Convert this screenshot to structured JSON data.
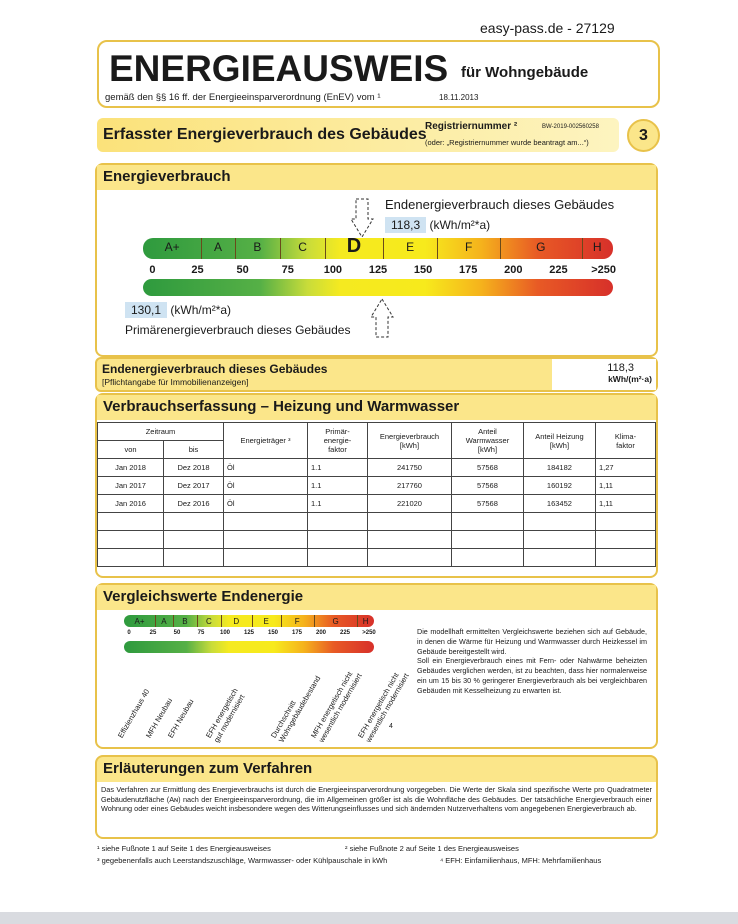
{
  "ref": "easy-pass.de - 27129",
  "header": {
    "title": "ENERGIEAUSWEIS",
    "subtitle": "für Wohngebäude",
    "enev": "gemäß den §§ 16 ff. der Energieeinsparverordnung (EnEV) vom ¹",
    "date": "18.11.2013"
  },
  "section": {
    "title": "Erfasster Energieverbrauch des Gebäudes",
    "reg_label": "Registriernummer ²",
    "reg_value": "BW-2019-002560258",
    "reg_note": "(oder: „Registriernummer wurde beantragt am...“)",
    "page": "3"
  },
  "energy": {
    "title": "Energieverbrauch",
    "end_label": "Endenergieverbrauch dieses Gebäudes",
    "end_value": "118,3",
    "unit": "(kWh/m²*a)",
    "prim_value": "130,1",
    "prim_label": "Primärenergieverbrauch dieses Gebäudes",
    "current_class": "D",
    "classes": [
      "A+",
      "A",
      "B",
      "C",
      "D",
      "E",
      "F",
      "G",
      "H"
    ],
    "ticks": [
      "0",
      "25",
      "50",
      "75",
      "100",
      "125",
      "150",
      "175",
      "200",
      "225",
      ">250"
    ]
  },
  "end_row": {
    "title": "Endenergieverbrauch dieses Gebäudes",
    "note": "[Pflichtangabe für Immobilienanzeigen]",
    "value": "118,3",
    "unit": "kWh/(m²·a)"
  },
  "consumption": {
    "title": "Verbrauchserfassung – Heizung und Warmwasser",
    "headers": {
      "period": "Zeitraum",
      "from": "von",
      "to": "bis",
      "carrier": "Energieträger ³",
      "pef": "Primär-\nenergie-\nfaktor",
      "use": "Energieverbrauch\n[kWh]",
      "ww": "Anteil\nWarmwasser\n[kWh]",
      "heat": "Anteil Heizung\n[kWh]",
      "climate": "Klima-\nfaktor"
    },
    "rows": [
      [
        "Jan 2018",
        "Dez 2018",
        "Öl",
        "1.1",
        "241750",
        "57568",
        "184182",
        "1,27"
      ],
      [
        "Jan 2017",
        "Dez 2017",
        "Öl",
        "1.1",
        "217760",
        "57568",
        "160192",
        "1,11"
      ],
      [
        "Jan 2016",
        "Dez 2016",
        "Öl",
        "1.1",
        "221020",
        "57568",
        "163452",
        "1,11"
      ]
    ]
  },
  "comparison": {
    "title": "Vergleichswerte Endenergie",
    "footnote_mark": "4",
    "labels": [
      "Effizienzhaus 40",
      "MFH Neubau",
      "EFH Neubau",
      "EFH energetisch\ngut modernisiert",
      "Durchschnitt\nWohngebäudebestand",
      "MFH energetisch nicht\nwesentlich modernisiert",
      "EFH energetisch nicht\nwesentlich modernisiert"
    ],
    "text": "Die modellhaft ermittelten Vergleichswerte beziehen sich auf Gebäude, in denen die Wärme für Heizung und Warmwasser durch Heizkessel im Gebäude bereitgestellt wird.",
    "text2": "Soll ein Energieverbrauch eines mit Fern- oder Nahwärme beheizten Gebäudes verglichen werden, ist zu beachten, dass hier normalerweise ein um 15 bis 30 % geringerer Energieverbrauch als bei vergleichbaren Gebäuden mit Kesselheizung zu erwarten ist."
  },
  "explanation": {
    "title": "Erläuterungen zum Verfahren",
    "text": "Das Verfahren zur Ermittlung des Energieverbrauchs ist durch die Energieeinsparverordnung vorgegeben. Die Werte der Skala sind spezifische Werte pro Quadratmeter Gebäudenutzfläche (Aɴ) nach der Energieeinsparverordnung, die im Allgemeinen größer ist als die Wohnfläche des Gebäudes. Der tatsächliche Energieverbrauch einer Wohnung oder eines Gebäudes weicht insbesondere wegen des Witterungseinflusses und sich ändernden Nutzerverhaltens vom angegebenen Energieverbrauch ab."
  },
  "footnotes": [
    "¹ siehe Fußnote 1 auf Seite 1 des Energieausweises",
    "² siehe Fußnote 2 auf Seite 1 des Energieausweises",
    "³ gegebenenfalls auch Leerstandszuschläge, Warmwasser- oder Kühlpauschale in kWh",
    "⁴ EFH: Einfamilienhaus, MFH: Mehrfamilienhaus"
  ]
}
